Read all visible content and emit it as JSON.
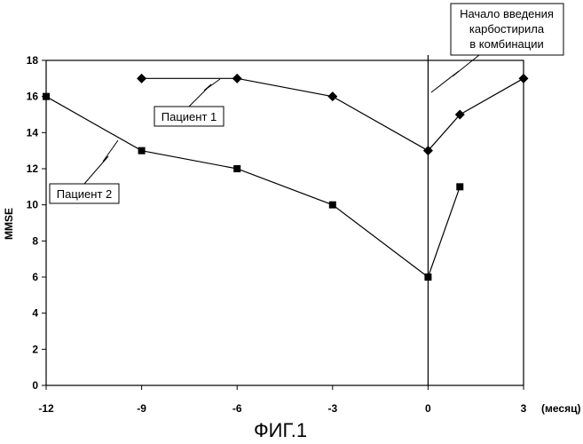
{
  "figure_caption": "ФИГ.1",
  "chart_data": {
    "type": "line",
    "ylabel": "MMSE",
    "x_unit_label": "(месяц)",
    "xlim": [
      -12,
      3
    ],
    "ylim": [
      0,
      18
    ],
    "x_ticks": [
      "-12",
      "-9",
      "-6",
      "-3",
      "0",
      "3"
    ],
    "y_ticks": [
      "0",
      "2",
      "4",
      "6",
      "8",
      "10",
      "12",
      "14",
      "16",
      "18"
    ],
    "grid": false,
    "reference_line_x": 0,
    "series": [
      {
        "name": "Пациент 1",
        "marker": "diamond",
        "segments": [
          [
            {
              "x": -9,
              "y": 17
            },
            {
              "x": -6,
              "y": 17
            },
            {
              "x": -3,
              "y": 16
            },
            {
              "x": 0,
              "y": 13
            }
          ],
          [
            {
              "x": 0,
              "y": 13
            },
            {
              "x": 1,
              "y": 15
            },
            {
              "x": 3,
              "y": 17
            }
          ]
        ]
      },
      {
        "name": "Пациент 2",
        "marker": "square",
        "segments": [
          [
            {
              "x": -12,
              "y": 16
            },
            {
              "x": -9,
              "y": 13
            },
            {
              "x": -6,
              "y": 12
            },
            {
              "x": -3,
              "y": 10
            },
            {
              "x": 0,
              "y": 6
            }
          ],
          [
            {
              "x": 0,
              "y": 6
            },
            {
              "x": 1,
              "y": 11
            }
          ]
        ]
      }
    ],
    "annotation": {
      "lines": [
        "Начало введения",
        "карбостирила",
        "в комбинации"
      ]
    },
    "colors": {
      "ink": "#000000",
      "background": "#ffffff"
    }
  }
}
